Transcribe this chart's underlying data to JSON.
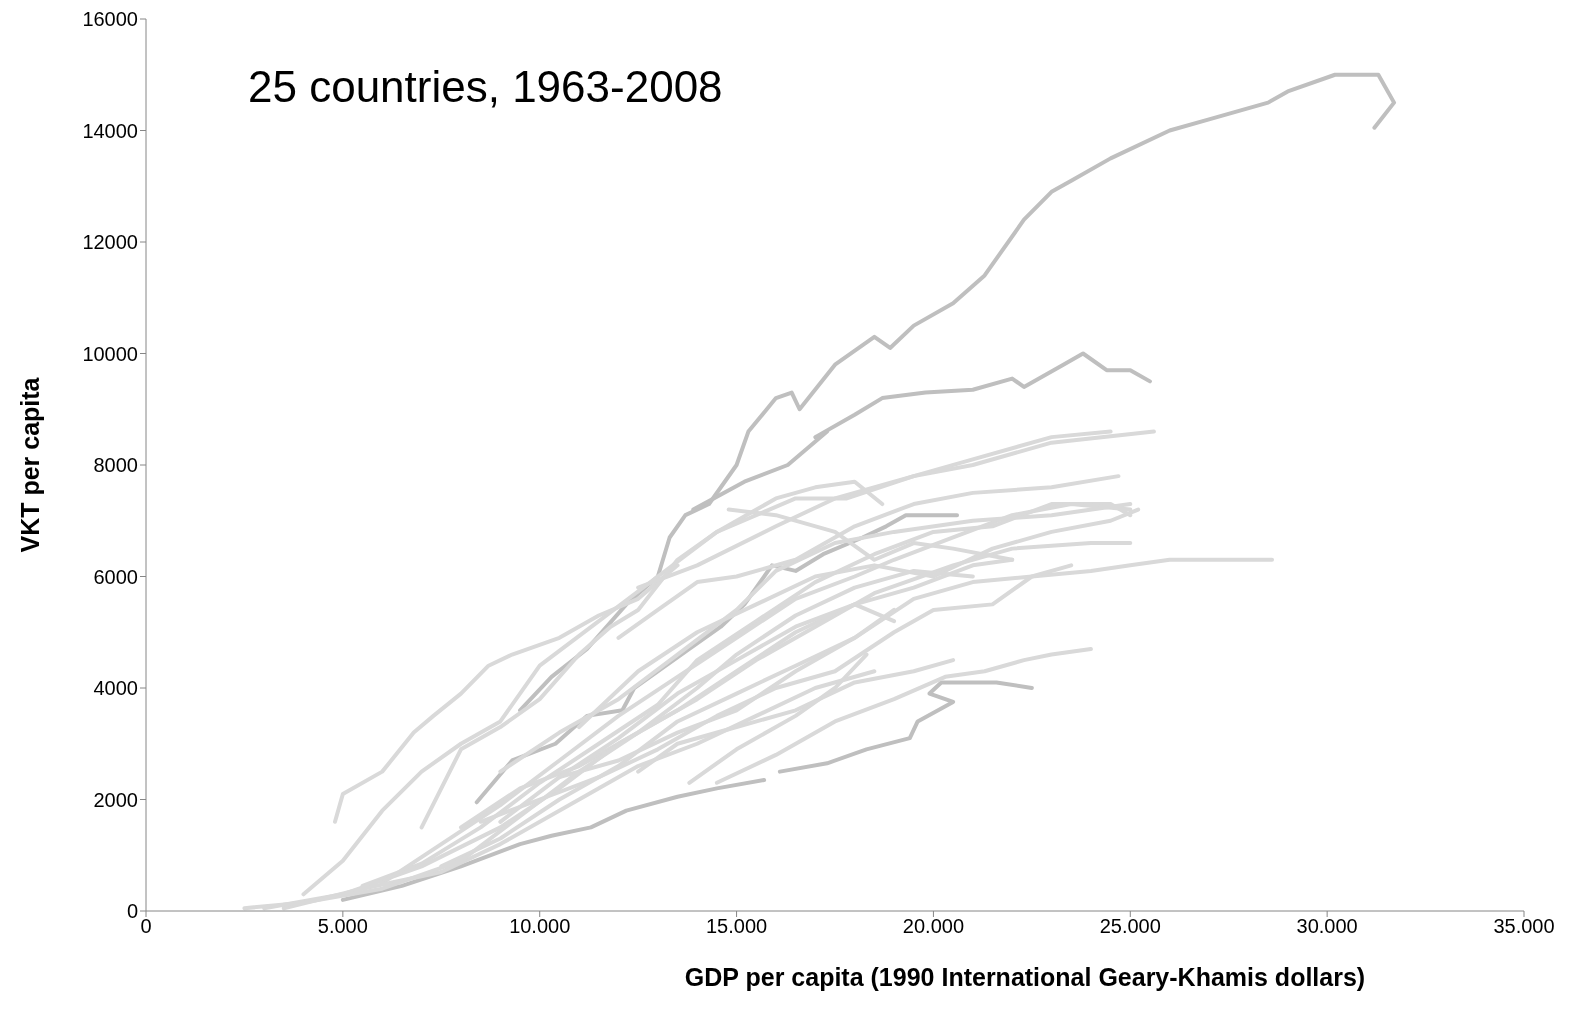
{
  "chart_data": {
    "type": "line",
    "title": "25 countries, 1963-2008",
    "xlabel": "GDP per capita (1990 International Geary-Khamis dollars)",
    "ylabel": "VKT  per capita",
    "xlim": [
      0,
      35000
    ],
    "xticks": [
      0,
      {
        "value": 5000,
        "label": "5.000"
      },
      {
        "value": 10000,
        "label": "10.000"
      },
      {
        "value": 15000,
        "label": "15.000"
      },
      {
        "value": 20000,
        "label": "20.000"
      },
      {
        "value": 25000,
        "label": "25.000"
      },
      {
        "value": 30000,
        "label": "30.000"
      },
      {
        "value": 35000,
        "label": "35.000"
      }
    ],
    "ylim": [
      0,
      16000
    ],
    "yticks": [
      0,
      2000,
      4000,
      6000,
      8000,
      10000,
      12000,
      14000,
      16000
    ],
    "grid": false,
    "legend": false,
    "series": [
      {
        "color": "#bfbfbf",
        "x": [
          9500,
          10300,
          11200,
          12200,
          13000,
          13300,
          13700,
          14300,
          15000,
          15300,
          16000,
          16400,
          16600,
          17500,
          18500,
          18900,
          19500,
          20500,
          21300,
          22300,
          23000,
          23500,
          24500,
          26000,
          27000,
          28500,
          29000,
          30200,
          31300,
          31700,
          31200
        ],
        "values": [
          3600,
          4200,
          4700,
          5500,
          6000,
          6700,
          7100,
          7300,
          8000,
          8600,
          9200,
          9300,
          9000,
          9800,
          10300,
          10100,
          10500,
          10900,
          11400,
          12400,
          12900,
          13100,
          13500,
          14000,
          14200,
          14500,
          14700,
          15000,
          15000,
          14500,
          14050
        ]
      },
      {
        "color": "#bfbfbf",
        "x": [
          8400,
          9300,
          10400,
          11200,
          12100,
          12400,
          13800,
          14600,
          15200,
          15900,
          16500,
          17200,
          18200,
          18800,
          19300,
          20600
        ],
        "values": [
          1950,
          2700,
          3000,
          3500,
          3600,
          4000,
          4700,
          5100,
          5500,
          6200,
          6100,
          6400,
          6700,
          6900,
          7100,
          7100
        ]
      },
      {
        "color": "#bfbfbf",
        "x": [
          13900,
          15200,
          16300,
          17300,
          17000,
          18000,
          18700,
          19800,
          21000,
          22000,
          22300,
          23300,
          23800,
          24400,
          25000,
          25500
        ],
        "values": [
          7200,
          7700,
          8000,
          8600,
          8500,
          8900,
          9200,
          9300,
          9350,
          9550,
          9400,
          9800,
          10000,
          9700,
          9700,
          9500
        ]
      },
      {
        "color": "#bfbfbf",
        "x": [
          5000,
          6500,
          8000,
          9500,
          10300,
          11300,
          12200,
          13500,
          14500,
          15700,
          15900,
          16100,
          17300,
          18300,
          19400,
          19600,
          20500,
          19900,
          20200,
          21600,
          22500
        ],
        "values": [
          200,
          450,
          800,
          1200,
          1350,
          1500,
          1800,
          2050,
          2200,
          2350,
          null,
          2500,
          2650,
          2900,
          3100,
          3400,
          3750,
          3900,
          4100,
          4100,
          4000
        ]
      },
      {
        "color": "#d9d9d9",
        "x": [
          4800,
          5000,
          6000,
          6800,
          7300,
          8000,
          8700,
          9300,
          10500,
          11500,
          12500,
          13500
        ],
        "values": [
          1600,
          2100,
          2500,
          3200,
          3500,
          3900,
          4400,
          4600,
          4900,
          5300,
          5600,
          6200
        ]
      },
      {
        "color": "#d9d9d9",
        "x": [
          4000,
          5000,
          6000,
          7000,
          8000,
          9000,
          10000,
          11500,
          13000,
          14500,
          16000,
          17000,
          18000,
          18700
        ],
        "values": [
          300,
          900,
          1800,
          2500,
          3000,
          3400,
          4400,
          5200,
          6000,
          6800,
          7400,
          7600,
          7700,
          7300
        ]
      },
      {
        "color": "#d9d9d9",
        "x": [
          7000,
          8000,
          9000,
          10000,
          11000,
          11800,
          12500,
          13500,
          14500,
          16500,
          17800,
          19500,
          21000,
          23000,
          24500
        ],
        "values": [
          1500,
          2900,
          3300,
          3800,
          4600,
          5100,
          5400,
          6300,
          6800,
          7400,
          7400,
          7800,
          8100,
          8500,
          8600
        ]
      },
      {
        "color": "#d9d9d9",
        "x": [
          12500,
          14000,
          16000,
          17500,
          19500,
          21000,
          23000,
          25600
        ],
        "values": [
          5800,
          6200,
          6900,
          7400,
          7800,
          8000,
          8400,
          8600
        ]
      },
      {
        "color": "#d9d9d9",
        "x": [
          5500,
          7000,
          8500,
          10000,
          11500,
          13000,
          14000,
          15500,
          17000,
          18500,
          20000,
          21500,
          23000,
          24500,
          25000
        ],
        "values": [
          450,
          850,
          1500,
          2300,
          3000,
          3700,
          4500,
          5200,
          5900,
          6400,
          6800,
          6900,
          7300,
          7300,
          7100
        ]
      },
      {
        "color": "#d9d9d9",
        "x": [
          8000,
          9500,
          11000,
          12500,
          14000,
          15500,
          17000,
          18500,
          20500,
          22000,
          24000,
          25000
        ],
        "values": [
          1500,
          2200,
          2600,
          3200,
          3800,
          4500,
          5100,
          5700,
          6200,
          6500,
          6600,
          6600
        ]
      },
      {
        "color": "#d9d9d9",
        "x": [
          10500,
          12000,
          13500,
          15000,
          16500,
          18000,
          19500,
          21000,
          22500,
          24000,
          25000,
          26000,
          27500,
          28600
        ],
        "values": [
          2400,
          2700,
          3200,
          3600,
          4300,
          4900,
          5600,
          5900,
          6000,
          6100,
          6200,
          6300,
          6300,
          6300
        ]
      },
      {
        "color": "#d9d9d9",
        "x": [
          12500,
          13500,
          15000,
          16500,
          18000,
          19500,
          20500
        ],
        "values": [
          2500,
          3000,
          3300,
          3600,
          4100,
          4300,
          4500
        ]
      },
      {
        "color": "#d9d9d9",
        "x": [
          13800,
          15000,
          16500,
          17500,
          18300
        ],
        "values": [
          2300,
          2900,
          3500,
          4000,
          4600
        ]
      },
      {
        "color": "#d9d9d9",
        "x": [
          3000,
          5000,
          7000,
          9000,
          10500,
          12000,
          13500,
          15000,
          16500,
          18000,
          19500,
          21000,
          22000
        ],
        "values": [
          50,
          300,
          800,
          1500,
          2200,
          3000,
          3600,
          4300,
          5000,
          5500,
          5800,
          6200,
          6300
        ]
      },
      {
        "color": "#d9d9d9",
        "x": [
          6000,
          7500,
          9000,
          10500,
          12000,
          13500,
          15000,
          16500,
          18000,
          19000,
          20500,
          22000,
          23500,
          25000
        ],
        "values": [
          500,
          1200,
          1900,
          2700,
          3500,
          4200,
          4900,
          5600,
          6000,
          6300,
          6700,
          7100,
          7300,
          7200
        ]
      },
      {
        "color": "#d9d9d9",
        "x": [
          9000,
          10500,
          12000,
          13500,
          15000,
          16000,
          17500,
          19000,
          21000,
          23000,
          25000
        ],
        "values": [
          2500,
          3200,
          3800,
          4600,
          5400,
          6100,
          6600,
          6800,
          7000,
          7100,
          7300
        ]
      },
      {
        "color": "#d9d9d9",
        "x": [
          11000,
          12500,
          14000,
          15500,
          17000,
          18500,
          20000,
          21500,
          23000,
          24500,
          25200
        ],
        "values": [
          3300,
          4300,
          5000,
          5500,
          6000,
          6200,
          6000,
          6500,
          6800,
          7000,
          7200
        ]
      },
      {
        "color": "#d9d9d9",
        "x": [
          7500,
          9000,
          10500,
          12000,
          13500,
          15000,
          16500,
          18000,
          19000
        ],
        "values": [
          800,
          1300,
          2000,
          2600,
          3400,
          3900,
          4400,
          4900,
          5400
        ]
      },
      {
        "color": "#d9d9d9",
        "x": [
          3500,
          5500,
          7500,
          9000,
          11000,
          12500,
          14000,
          15500,
          17000,
          18500
        ],
        "values": [
          50,
          400,
          700,
          1200,
          2000,
          2600,
          3000,
          3500,
          4000,
          4300
        ]
      },
      {
        "color": "#d9d9d9",
        "x": [
          14800,
          16000,
          17500,
          18500,
          19500,
          20500,
          22000
        ],
        "values": [
          7200,
          7100,
          6800,
          6300,
          6600,
          6500,
          6300
        ]
      },
      {
        "color": "#d9d9d9",
        "x": [
          8500,
          10000,
          11500,
          13000,
          14500,
          16000,
          17500,
          19000,
          20000,
          21500,
          22500,
          23500
        ],
        "values": [
          1600,
          2000,
          2400,
          2900,
          3500,
          4000,
          4300,
          5000,
          5400,
          5500,
          6000,
          6200
        ]
      },
      {
        "color": "#d9d9d9",
        "x": [
          2500,
          4000,
          6000,
          8000,
          9500,
          11000,
          12500,
          14000,
          15000,
          16500,
          18000,
          19500,
          21000
        ],
        "values": [
          50,
          150,
          400,
          900,
          1700,
          2500,
          3200,
          4000,
          4600,
          5300,
          5800,
          6100,
          6000
        ]
      },
      {
        "color": "#d9d9d9",
        "x": [
          9000,
          10500,
          12000,
          13500,
          15000,
          16500,
          18000,
          19000
        ],
        "values": [
          1600,
          2400,
          3100,
          3900,
          4500,
          5100,
          5500,
          5200
        ]
      },
      {
        "color": "#d9d9d9",
        "x": [
          12000,
          13000,
          14000,
          15000,
          16500,
          18000,
          19500,
          21000,
          23000,
          24700
        ],
        "values": [
          4900,
          5400,
          5900,
          6000,
          6300,
          6900,
          7300,
          7500,
          7600,
          7800
        ]
      },
      {
        "color": "#d9d9d9",
        "x": [
          14500,
          16000,
          17500,
          19000,
          20300,
          21300,
          22300,
          23000,
          24000
        ],
        "values": [
          2300,
          2800,
          3400,
          3800,
          4200,
          4300,
          4500,
          4600,
          4700
        ]
      }
    ]
  }
}
